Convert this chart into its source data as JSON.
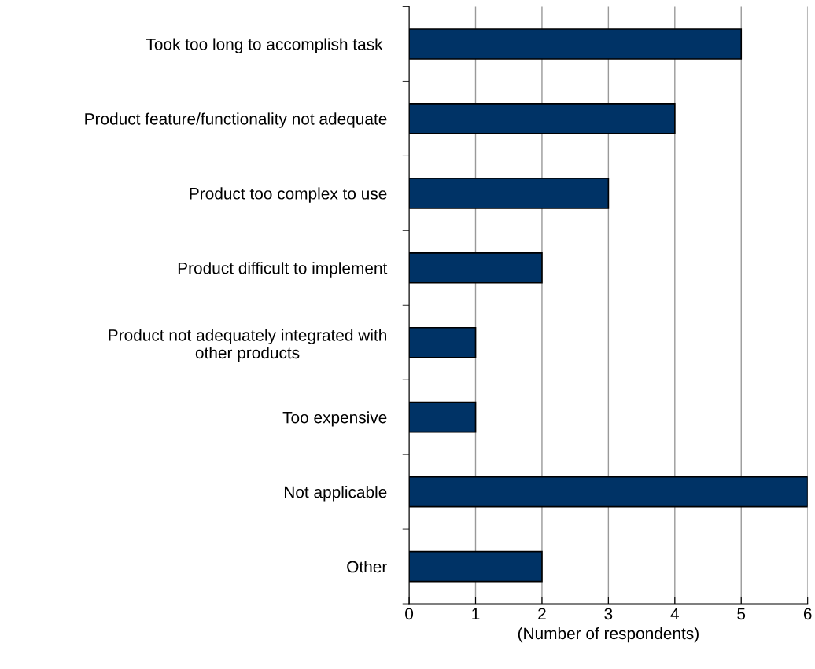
{
  "chart_data": {
    "type": "bar",
    "orientation": "horizontal",
    "xlabel": "(Number of respondents)",
    "categories": [
      "Took too long to accomplish task ",
      "Product feature/functionality not adequate",
      "Product too complex to use",
      "Product difficult to implement",
      "Product not adequately integrated with\nother products",
      "Too expensive",
      "Not applicable",
      "Other"
    ],
    "values": [
      5,
      4,
      3,
      2,
      1,
      1,
      6,
      2
    ],
    "color": "#003366",
    "xlim": [
      0,
      6
    ],
    "xticks": [
      0,
      1,
      2,
      3,
      4,
      5,
      6
    ],
    "grid": "x",
    "legend": false
  }
}
